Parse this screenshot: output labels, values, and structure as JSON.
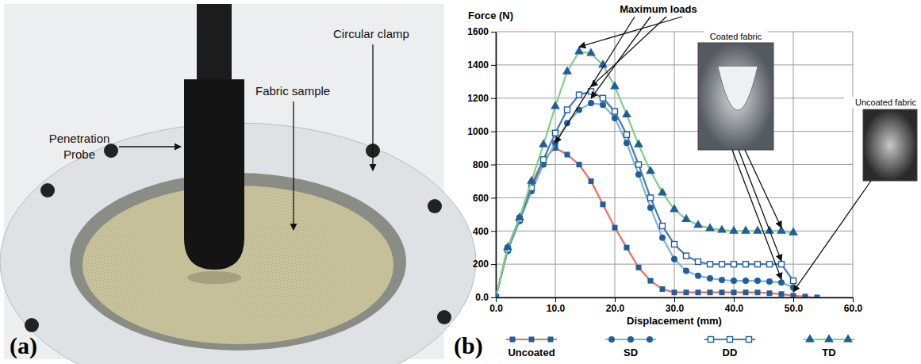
{
  "chart_data": {
    "type": "line",
    "panel_label": "(b)",
    "y_label": "Force (N)",
    "x_label": "Displacement (mm)",
    "x": [
      0,
      2,
      4,
      6,
      8,
      10,
      12,
      14,
      16,
      18,
      20,
      22,
      24,
      26,
      28,
      30,
      32,
      34,
      36,
      38,
      40,
      42,
      44,
      46,
      48,
      50,
      52,
      54
    ],
    "series": [
      {
        "name": "Uncoated",
        "color": "#f26b5b",
        "marker": "square",
        "line_style": "solid",
        "values": [
          0,
          300,
          480,
          680,
          830,
          900,
          860,
          800,
          700,
          560,
          420,
          300,
          180,
          100,
          50,
          30,
          30,
          30,
          30,
          30,
          30,
          30,
          30,
          25,
          20,
          10,
          5,
          0
        ]
      },
      {
        "name": "SD",
        "color": "#7fb2e0",
        "marker": "circle",
        "line_style": "solid",
        "values": [
          0,
          280,
          460,
          640,
          800,
          930,
          1050,
          1130,
          1170,
          1160,
          1080,
          930,
          740,
          540,
          360,
          230,
          160,
          130,
          115,
          105,
          100,
          100,
          100,
          95,
          90,
          60,
          null,
          null
        ]
      },
      {
        "name": "DD",
        "color": "#4a7ab5",
        "marker": "square-open",
        "line_style": "solid",
        "values": [
          0,
          290,
          470,
          660,
          830,
          990,
          1130,
          1220,
          1240,
          1200,
          1120,
          980,
          800,
          600,
          430,
          320,
          250,
          215,
          200,
          200,
          200,
          200,
          200,
          200,
          200,
          100,
          null,
          null
        ]
      },
      {
        "name": "TD",
        "color": "#7fd07f",
        "marker": "triangle",
        "line_style": "solid",
        "values": [
          0,
          300,
          480,
          700,
          920,
          1150,
          1360,
          1480,
          1470,
          1400,
          1270,
          1100,
          920,
          760,
          630,
          530,
          470,
          435,
          415,
          405,
          400,
          400,
          400,
          400,
          400,
          390,
          null,
          null
        ]
      }
    ],
    "xlim": [
      0,
      60
    ],
    "xticks": [
      {
        "value": 0,
        "label": "0.0"
      },
      {
        "value": 10,
        "label": "10.0"
      },
      {
        "value": 20,
        "label": "20.0"
      },
      {
        "value": 30,
        "label": "30.0"
      },
      {
        "value": 40,
        "label": "40.0"
      },
      {
        "value": 50,
        "label": "50.0"
      },
      {
        "value": 60,
        "label": "60.0"
      }
    ],
    "ylim": [
      0,
      1600
    ],
    "yticks": [
      {
        "value": 0,
        "label": "0.0"
      },
      200,
      400,
      600,
      800,
      1000,
      1200,
      1400,
      1600
    ],
    "grid": true,
    "legend": "bottom",
    "annotations": [
      "Maximum loads",
      "Coated fabric",
      "Uncoated fabric"
    ]
  },
  "photo": {
    "panel_label": "(a)",
    "labels": [
      "Penetration Probe",
      "Fabric sample",
      "Circular clamp"
    ]
  }
}
